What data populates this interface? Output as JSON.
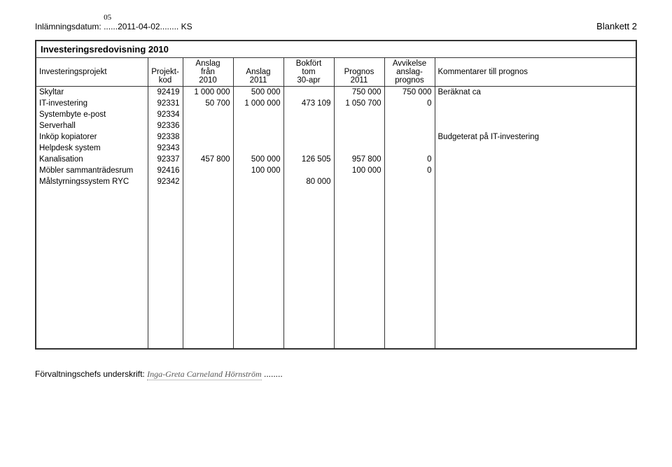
{
  "header": {
    "submission_label": "Inlämningsdatum:",
    "submission_value": "......2011-04-02........ KS",
    "handwritten_month": "05",
    "blankett": "Blankett 2"
  },
  "table": {
    "title": "Investeringsredovisning 2010",
    "columns": {
      "c1": "Investeringsprojekt",
      "c2a": "Projekt-",
      "c2b": "kod",
      "c3a": "Anslag",
      "c3b": "från",
      "c3c": "2010",
      "c4a": "Anslag",
      "c4b": "2011",
      "c5a": "Bokfört",
      "c5b": "tom",
      "c5c": "30-apr",
      "c6a": "Prognos",
      "c6b": "2011",
      "c7a": "Avvikelse",
      "c7b": "anslag-",
      "c7c": "prognos",
      "c8": "Kommentarer till prognos"
    },
    "rows": [
      {
        "name": "Skyltar",
        "kod": "92419",
        "c3": "1 000 000",
        "c4": "500 000",
        "c5": "",
        "c6": "750 000",
        "c7": "750 000",
        "c8": "Beräknat ca"
      },
      {
        "name": "IT-investering",
        "kod": "92331",
        "c3": "50 700",
        "c4": "1 000 000",
        "c5": "473 109",
        "c6": "1 050 700",
        "c7": "0",
        "c8": ""
      },
      {
        "name": "Systembyte e-post",
        "kod": "92334",
        "c3": "",
        "c4": "",
        "c5": "",
        "c6": "",
        "c7": "",
        "c8": ""
      },
      {
        "name": "Serverhall",
        "kod": "92336",
        "c3": "",
        "c4": "",
        "c5": "",
        "c6": "",
        "c7": "",
        "c8": ""
      },
      {
        "name": "Inköp kopiatorer",
        "kod": "92338",
        "c3": "",
        "c4": "",
        "c5": "",
        "c6": "",
        "c7": "",
        "c8": "Budgeterat på IT-investering"
      },
      {
        "name": "Helpdesk system",
        "kod": "92343",
        "c3": "",
        "c4": "",
        "c5": "",
        "c6": "",
        "c7": "",
        "c8": ""
      },
      {
        "name": "Kanalisation",
        "kod": "92337",
        "c3": "457 800",
        "c4": "500 000",
        "c5": "126 505",
        "c6": "957 800",
        "c7": "0",
        "c8": ""
      },
      {
        "name": "Möbler sammanträdesrum",
        "kod": "92416",
        "c3": "",
        "c4": "100 000",
        "c5": "",
        "c6": "100 000",
        "c7": "0",
        "c8": ""
      },
      {
        "name": "Målstyrningssystem RYC",
        "kod": "92342",
        "c3": "",
        "c4": "",
        "c5": "80 000",
        "c6": "",
        "c7": "",
        "c8": ""
      }
    ]
  },
  "signature": {
    "label": "Förvaltningschefs underskrift:",
    "value": "Inga-Greta Carneland Hörnström"
  },
  "style": {
    "background_color": "#ffffff",
    "border_color": "#333333",
    "font_size_body": 12,
    "font_size_table": 11.5
  }
}
